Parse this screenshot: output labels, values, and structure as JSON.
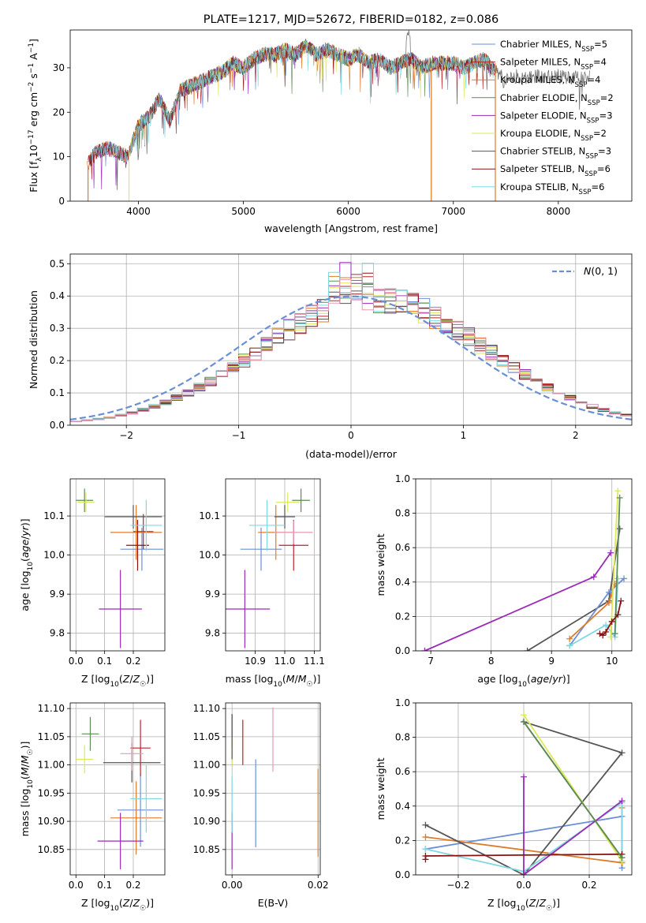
{
  "chart_data": [
    {
      "id": "spectrum",
      "type": "line",
      "title": "PLATE=1217, MJD=52672, FIBERID=0182, z=0.086",
      "xlabel": "wavelength [Angstrom, rest frame]",
      "ylabel": "Flux [fλ10⁻¹⁷ erg cm⁻² s⁻¹ A⁻¹]",
      "xlim": [
        3350,
        8700
      ],
      "ylim": [
        0,
        38.5
      ],
      "xticks": [
        4000,
        5000,
        6000,
        7000,
        8000
      ],
      "yticks": [
        0,
        10,
        20,
        30
      ],
      "grid": false,
      "legend_position": "top-right",
      "envelope": {
        "x": [
          3500,
          3600,
          3700,
          3800,
          3900,
          4000,
          4100,
          4200,
          4300,
          4400,
          4500,
          4600,
          4700,
          4800,
          4900,
          5000,
          5100,
          5200,
          5300,
          5400,
          5500,
          5600,
          5700,
          5800,
          5900,
          6000,
          6100,
          6200,
          6300,
          6400,
          6500,
          6600,
          6700,
          6800,
          6900,
          7000,
          7100,
          7200,
          7300,
          7400,
          7450
        ],
        "y": [
          8,
          11,
          12,
          11,
          10,
          17,
          19,
          23,
          18,
          25,
          26,
          27,
          28,
          29,
          31,
          30,
          32,
          33,
          33,
          34,
          33,
          35,
          33,
          34,
          33,
          32,
          33,
          31,
          32,
          30,
          31,
          32,
          30,
          31,
          31,
          31,
          30,
          31,
          32,
          29,
          28
        ]
      },
      "series": [
        {
          "name": "Chabrier MILES, N_SSP=5",
          "color": "#6a8fd6"
        },
        {
          "name": "Salpeter MILES, N_SSP=4",
          "color": "#b7242b"
        },
        {
          "name": "Kroupa MILES, N_SSP=4",
          "color": "#e07b2a"
        },
        {
          "name": "Chabrier ELODIE, N_SSP=2",
          "color": "#5c8c55"
        },
        {
          "name": "Salpeter ELODIE, N_SSP=3",
          "color": "#9a2bb8"
        },
        {
          "name": "Kroupa ELODIE, N_SSP=2",
          "color": "#dde85a"
        },
        {
          "name": "Chabrier STELIB, N_SSP=3",
          "color": "#555555"
        },
        {
          "name": "Salpeter STELIB, N_SSP=6",
          "color": "#8b1212"
        },
        {
          "name": "Kroupa STELIB, N_SSP=6",
          "color": "#7fd8e2"
        }
      ],
      "legend_labels": [
        {
          "base": "Chabrier MILES, N",
          "sub": "SSP",
          "tail": "=5"
        },
        {
          "base": "Salpeter MILES, N",
          "sub": "SSP",
          "tail": "=4"
        },
        {
          "base": "Kroupa MILES, N",
          "sub": "SSP",
          "tail": "=4"
        },
        {
          "base": "Chabrier ELODIE, N",
          "sub": "SSP",
          "tail": "=2"
        },
        {
          "base": "Salpeter ELODIE, N",
          "sub": "SSP",
          "tail": "=3"
        },
        {
          "base": "Kroupa ELODIE, N",
          "sub": "SSP",
          "tail": "=2"
        },
        {
          "base": "Chabrier STELIB, N",
          "sub": "SSP",
          "tail": "=3"
        },
        {
          "base": "Salpeter STELIB, N",
          "sub": "SSP",
          "tail": "=6"
        },
        {
          "base": "Kroupa STELIB, N",
          "sub": "SSP",
          "tail": "=6"
        }
      ]
    },
    {
      "id": "residuals",
      "type": "line",
      "xlabel": "(data-model)/error",
      "ylabel": "Normed distribution",
      "xlim": [
        -2.5,
        2.5
      ],
      "ylim": [
        0,
        0.53
      ],
      "xticks": [
        -2,
        -1,
        0,
        1,
        2
      ],
      "yticks": [
        0.0,
        0.1,
        0.2,
        0.3,
        0.4,
        0.5
      ],
      "grid": true,
      "legend_position": "top-right",
      "reference_curve": {
        "name": "N(0,1)",
        "color": "#6a8fd6",
        "style": "dashed"
      },
      "bin_width": 0.1
    },
    {
      "id": "age_vs_Z",
      "type": "scatter",
      "xlabel": "Z [log10(Z/Z☉)]",
      "ylabel": "age  [log10(age/yr)]",
      "xlim": [
        -0.02,
        0.31
      ],
      "ylim": [
        9.755,
        10.195
      ],
      "xticks": [
        0.0,
        0.1,
        0.2
      ],
      "yticks": [
        9.8,
        9.9,
        10.0,
        10.1
      ],
      "grid": true,
      "points": [
        {
          "color": "#6a8fd6",
          "x": 0.23,
          "xerr": 0.075,
          "y": 10.015,
          "yerr": 0.055
        },
        {
          "color": "#b7242b",
          "x": 0.235,
          "xerr": 0.035,
          "y": 10.06,
          "yerr": 0.045
        },
        {
          "color": "#e07b2a",
          "x": 0.21,
          "xerr": 0.09,
          "y": 10.058,
          "yerr": 0.07
        },
        {
          "color": "#5c8c55",
          "x": 0.03,
          "xerr": 0.03,
          "y": 10.14,
          "yerr": 0.03
        },
        {
          "color": "#9a2bb8",
          "x": 0.155,
          "xerr": 0.075,
          "y": 9.862,
          "yerr": 0.1
        },
        {
          "color": "#dde85a",
          "x": 0.035,
          "xerr": 0.03,
          "y": 10.135,
          "yerr": 0.025
        },
        {
          "color": "#555555",
          "x": 0.2,
          "xerr": 0.1,
          "y": 10.098,
          "yerr": 0.03
        },
        {
          "color": "#8b1212",
          "x": 0.215,
          "xerr": 0.04,
          "y": 10.025,
          "yerr": 0.065
        },
        {
          "color": "#7fd8e2",
          "x": 0.245,
          "xerr": 0.055,
          "y": 10.076,
          "yerr": 0.065
        }
      ]
    },
    {
      "id": "age_vs_mass",
      "type": "scatter",
      "xlabel": "mass [log10(M/M☉)]",
      "ylabel": "",
      "xlim": [
        10.8,
        11.12
      ],
      "ylim": [
        9.755,
        10.195
      ],
      "xticks": [
        10.9,
        11.0,
        11.1
      ],
      "yticks": [
        9.8,
        9.9,
        10.0,
        10.1
      ],
      "grid": true,
      "points": [
        {
          "color": "#6a8fd6",
          "x": 10.92,
          "xerr": 0.07,
          "y": 10.015,
          "yerr": 0.055
        },
        {
          "color": "#b7242b",
          "x": 11.03,
          "xerr": 0.05,
          "y": 10.025,
          "yerr": 0.065
        },
        {
          "color": "#e07b2a",
          "x": 10.97,
          "xerr": 0.06,
          "y": 10.058,
          "yerr": 0.07
        },
        {
          "color": "#5c8c55",
          "x": 11.055,
          "xerr": 0.03,
          "y": 10.14,
          "yerr": 0.03
        },
        {
          "color": "#9a2bb8",
          "x": 10.865,
          "xerr": 0.085,
          "y": 9.862,
          "yerr": 0.1
        },
        {
          "color": "#dde85a",
          "x": 11.01,
          "xerr": 0.04,
          "y": 10.135,
          "yerr": 0.025
        },
        {
          "color": "#555555",
          "x": 11.0,
          "xerr": 0.035,
          "y": 10.098,
          "yerr": 0.03
        },
        {
          "color": "#e89ab5",
          "x": 11.03,
          "xerr": 0.065,
          "y": 10.058,
          "yerr": 0.03
        },
        {
          "color": "#7fd8e2",
          "x": 10.94,
          "xerr": 0.06,
          "y": 10.076,
          "yerr": 0.065
        }
      ]
    },
    {
      "id": "weight_vs_age",
      "type": "line",
      "xlabel": "age  [log10(age/yr)]",
      "ylabel": "mass weight",
      "xlim": [
        6.75,
        10.33
      ],
      "ylim": [
        0,
        1.0
      ],
      "xticks": [
        7,
        8,
        9,
        10
      ],
      "yticks": [
        0.0,
        0.2,
        0.4,
        0.6,
        0.8,
        1.0
      ],
      "grid": true,
      "series": [
        {
          "color": "#9a2bb8",
          "x": [
            6.9,
            9.7,
            9.98
          ],
          "y": [
            0.0,
            0.43,
            0.57
          ]
        },
        {
          "color": "#555555",
          "x": [
            8.6,
            9.95,
            10.13
          ],
          "y": [
            0.0,
            0.29,
            0.71
          ]
        },
        {
          "color": "#6a8fd6",
          "x": [
            9.3,
            9.95,
            10.2
          ],
          "y": [
            0.03,
            0.34,
            0.42
          ]
        },
        {
          "color": "#e07b2a",
          "x": [
            9.3,
            9.95,
            10.05
          ],
          "y": [
            0.07,
            0.28,
            0.39
          ]
        },
        {
          "color": "#7fd8e2",
          "x": [
            9.3,
            9.9,
            10.05,
            10.1
          ],
          "y": [
            0.03,
            0.15,
            0.08,
            0.42
          ]
        },
        {
          "color": "#dde85a",
          "x": [
            9.98,
            10.1
          ],
          "y": [
            0.08,
            0.93
          ]
        },
        {
          "color": "#5c8c55",
          "x": [
            10.05,
            10.13
          ],
          "y": [
            0.1,
            0.89
          ]
        },
        {
          "color": "#8b1212",
          "x": [
            9.8,
            9.85,
            9.9,
            10.0,
            10.1,
            10.15
          ],
          "y": [
            0.1,
            0.09,
            0.11,
            0.17,
            0.21,
            0.29
          ]
        }
      ]
    },
    {
      "id": "mass_vs_Z",
      "type": "scatter",
      "xlabel": "Z [log10(Z/Z☉)]",
      "ylabel": "mass [log10(M/M☉)]",
      "xlim": [
        -0.02,
        0.31
      ],
      "ylim": [
        10.805,
        11.11
      ],
      "xticks": [
        0.0,
        0.1,
        0.2
      ],
      "yticks": [
        10.85,
        10.9,
        10.95,
        11.0,
        11.05,
        11.1
      ],
      "grid": true,
      "points": [
        {
          "color": "#6a8fd6",
          "x": 0.225,
          "xerr": 0.08,
          "y": 10.92,
          "yerr": 0.065
        },
        {
          "color": "#b7242b",
          "x": 0.225,
          "xerr": 0.035,
          "y": 11.03,
          "yerr": 0.05
        },
        {
          "color": "#e07b2a",
          "x": 0.21,
          "xerr": 0.09,
          "y": 10.906,
          "yerr": 0.065
        },
        {
          "color": "#5c8c55",
          "x": 0.05,
          "xerr": 0.03,
          "y": 11.055,
          "yerr": 0.03
        },
        {
          "color": "#9a2bb8",
          "x": 0.155,
          "xerr": 0.08,
          "y": 10.865,
          "yerr": 0.05
        },
        {
          "color": "#dde85a",
          "x": 0.03,
          "xerr": 0.03,
          "y": 11.01,
          "yerr": 0.025
        },
        {
          "color": "#555555",
          "x": 0.195,
          "xerr": 0.1,
          "y": 11.004,
          "yerr": 0.035
        },
        {
          "color": "#e89ab5",
          "x": 0.195,
          "xerr": 0.04,
          "y": 11.02,
          "yerr": 0.03
        },
        {
          "color": "#7fd8e2",
          "x": 0.245,
          "xerr": 0.055,
          "y": 10.94,
          "yerr": 0.06
        }
      ]
    },
    {
      "id": "mass_vs_EBV",
      "type": "scatter",
      "xlabel": "E(B-V)",
      "ylabel": "",
      "xlim": [
        -0.0015,
        0.0205
      ],
      "ylim": [
        10.805,
        11.11
      ],
      "xticks": [
        0.0,
        0.02
      ],
      "yticks": [
        10.85,
        10.9,
        10.95,
        11.0,
        11.05,
        11.1
      ],
      "grid": true,
      "points": [
        {
          "color": "#6a8fd6",
          "x": 0.0055,
          "xerr": 0,
          "y": 10.932,
          "yerr": 0.078
        },
        {
          "color": "#b7242b",
          "x": 0.0025,
          "xerr": 0,
          "y": 11.04,
          "yerr": 0.04
        },
        {
          "color": "#e07b2a",
          "x": 0.02,
          "xerr": 0,
          "y": 10.915,
          "yerr": 0.078
        },
        {
          "color": "#5c8c55",
          "x": 0.0,
          "xerr": 0,
          "y": 11.06,
          "yerr": 0.03
        },
        {
          "color": "#9a2bb8",
          "x": 0.0,
          "xerr": 0,
          "y": 10.865,
          "yerr": 0.05
        },
        {
          "color": "#dde85a",
          "x": 0.0,
          "xerr": 0,
          "y": 11.025,
          "yerr": 0.025
        },
        {
          "color": "#555555",
          "x": 0.0,
          "xerr": 0,
          "y": 11.05,
          "yerr": 0.04
        },
        {
          "color": "#e89ab5",
          "x": 0.0095,
          "xerr": 0,
          "y": 11.045,
          "yerr": 0.057
        },
        {
          "color": "#7fd8e2",
          "x": 0.0,
          "xerr": 0,
          "y": 10.93,
          "yerr": 0.05
        }
      ]
    },
    {
      "id": "weight_vs_Z",
      "type": "line",
      "xlabel": "Z [log10(Z/Z☉)]",
      "ylabel": "mass weight",
      "xlim": [
        -0.33,
        0.33
      ],
      "ylim": [
        0,
        1.0
      ],
      "xticks": [
        -0.2,
        0.0,
        0.2
      ],
      "yticks": [
        0.0,
        0.2,
        0.4,
        0.6,
        0.8,
        1.0
      ],
      "grid": true,
      "series": [
        {
          "color": "#6a8fd6",
          "x": [
            -0.3,
            0.3,
            0.3
          ],
          "y": [
            0.15,
            0.34,
            0.04
          ]
        },
        {
          "color": "#e07b2a",
          "x": [
            -0.3,
            0.3,
            0.3
          ],
          "y": [
            0.22,
            0.07,
            0.39
          ]
        },
        {
          "color": "#555555",
          "x": [
            -0.3,
            0.0,
            0.3,
            0.0,
            0.3
          ],
          "y": [
            0.29,
            0.0,
            0.71,
            0.89,
            0.1
          ]
        },
        {
          "color": "#7fd8e2",
          "x": [
            -0.3,
            0.0,
            0.3,
            0.3
          ],
          "y": [
            0.15,
            0.02,
            0.42,
            0.08
          ]
        },
        {
          "color": "#dde85a",
          "x": [
            0.0,
            0.3
          ],
          "y": [
            0.93,
            0.08
          ]
        },
        {
          "color": "#9a2bb8",
          "x": [
            0.0,
            0.0,
            0.3
          ],
          "y": [
            0.57,
            0.0,
            0.43
          ]
        },
        {
          "color": "#8b1212",
          "x": [
            -0.3,
            -0.3,
            0.3
          ],
          "y": [
            0.09,
            0.11,
            0.12
          ]
        },
        {
          "color": "#5c8c55",
          "x": [
            0.0,
            0.3
          ],
          "y": [
            0.89,
            0.1
          ]
        }
      ]
    }
  ]
}
